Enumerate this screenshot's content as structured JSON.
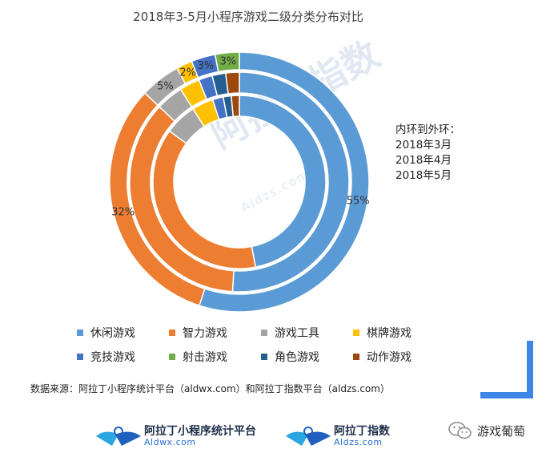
{
  "chart_data": {
    "type": "pie",
    "subtype": "multi-ring donut",
    "title": "2018年3-5月小程序游戏二级分类分布对比",
    "categories": [
      "休闲游戏",
      "智力游戏",
      "游戏工具",
      "棋牌游戏",
      "竞技游戏",
      "射击游戏",
      "角色游戏",
      "动作游戏"
    ],
    "colors": [
      "#5b9bd5",
      "#ed7d31",
      "#a5a5a5",
      "#ffc000",
      "#4472c4",
      "#70ad47",
      "#255e91",
      "#9e480e"
    ],
    "series": [
      {
        "name": "2018年3月",
        "values": [
          47,
          38,
          6,
          4,
          2,
          0,
          1.5,
          1.5
        ]
      },
      {
        "name": "2018年4月",
        "values": [
          51,
          36,
          4,
          3,
          2,
          0,
          2,
          2
        ]
      },
      {
        "name": "2018年5月",
        "values": [
          55,
          32,
          5,
          2,
          3,
          3,
          0,
          0
        ]
      }
    ],
    "data_labels": [
      {
        "series": "2018年5月",
        "category": "休闲游戏",
        "text": "55%"
      },
      {
        "series": "2018年5月",
        "category": "智力游戏",
        "text": "32%"
      },
      {
        "series": "2018年5月",
        "category": "游戏工具",
        "text": "5%"
      },
      {
        "series": "2018年5月",
        "category": "棋牌游戏",
        "text": "2%"
      },
      {
        "series": "2018年5月",
        "category": "竞技游戏",
        "text": "3%"
      },
      {
        "series": "2018年5月",
        "category": "射击游戏",
        "text": "3%"
      }
    ],
    "note_lines": [
      "内环到外环：",
      "2018年3月",
      "2018年4月",
      "2018年5月"
    ],
    "legend_position": "bottom"
  },
  "source_text": "数据来源：阿拉丁小程序统计平台（aldwx.com）和阿拉丁指数平台（aldzs.com）",
  "logos": [
    {
      "main": "阿拉丁小程序统计平台",
      "sub": "Aldwx.com"
    },
    {
      "main": "阿拉丁指数",
      "sub": "Aldzs.com"
    }
  ],
  "watermark": {
    "main": "阿拉丁指数",
    "sub": "Aldzs.com"
  },
  "wechat_account": "游戏葡萄"
}
